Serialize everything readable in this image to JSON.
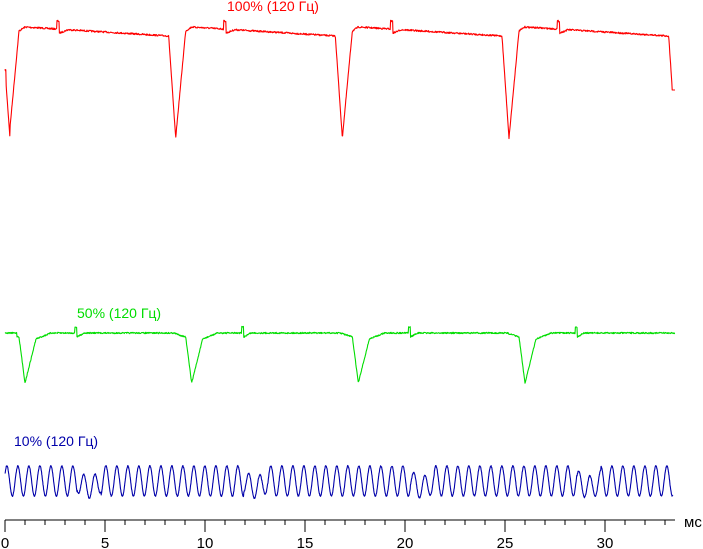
{
  "chart_data": {
    "type": "line",
    "xlabel": "мс",
    "xlim": [
      0,
      33.4
    ],
    "xticks_major": [
      0,
      5,
      10,
      15,
      20,
      25,
      30
    ],
    "xtick_labels": [
      "0",
      "5",
      "10",
      "15",
      "20",
      "25",
      "30"
    ],
    "xticks_minor_step": 1,
    "grid": false,
    "legend": "none",
    "series": [
      {
        "name": "100% (120 Гц)",
        "color": "#ff0000",
        "shape": "brightness-waveform",
        "frequency_hz": 120,
        "dip_positions_ms": [
          0.2,
          8.55,
          16.9,
          25.25
        ],
        "notch_positions_ms": [
          2.6,
          10.95,
          19.3,
          27.65
        ],
        "plateau_level_start": 0.93,
        "plateau_level_end": 0.86,
        "dip_min_level": 0.0
      },
      {
        "name": "50% (120 Гц)",
        "color": "#00dd00",
        "shape": "brightness-waveform",
        "frequency_hz": 120,
        "dip_positions_ms": [
          1.0,
          9.35,
          17.7,
          26.05
        ],
        "notch_positions_ms": [
          3.5,
          11.85,
          20.2,
          28.55
        ],
        "plateau_level": 0.52,
        "dip_min_level": 0.35
      },
      {
        "name": "10% (120 Гц)",
        "color": "#0000aa",
        "shape": "oscillation",
        "frequency_hz": 120,
        "ripple_period_ms": 0.55,
        "phase_jump_positions_ms": [
          4.2,
          12.55,
          20.9,
          29.25
        ],
        "mean_level": 0.12,
        "amplitude": 0.05
      }
    ]
  }
}
